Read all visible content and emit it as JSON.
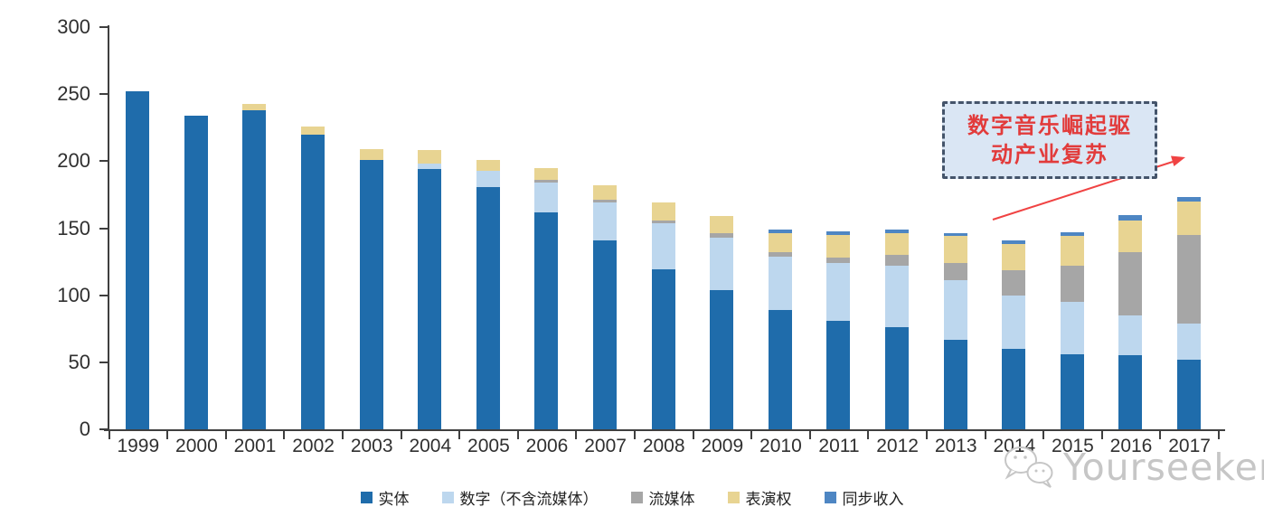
{
  "chart_data": {
    "type": "bar",
    "variant": "stacked",
    "title": "",
    "unit_note": "",
    "categories": [
      "1999",
      "2000",
      "2001",
      "2002",
      "2003",
      "2004",
      "2005",
      "2006",
      "2007",
      "2008",
      "2009",
      "2010",
      "2011",
      "2012",
      "2013",
      "2014",
      "2015",
      "2016",
      "2017"
    ],
    "series": [
      {
        "name": "实体",
        "color": "#1F6CAB",
        "values": [
          252,
          234,
          238,
          220,
          201,
          194,
          181,
          162,
          141,
          119,
          104,
          89,
          81,
          76,
          67,
          60,
          56,
          55,
          52
        ]
      },
      {
        "name": "数字（不含流媒体）",
        "color": "#BDD7EE",
        "values": [
          0,
          0,
          0,
          0,
          0,
          4,
          12,
          22,
          28,
          35,
          39,
          40,
          43,
          46,
          44,
          40,
          39,
          30,
          27
        ]
      },
      {
        "name": "流媒体",
        "color": "#A6A6A6",
        "values": [
          0,
          0,
          0,
          0,
          0,
          0,
          0,
          2,
          2,
          2,
          3,
          3,
          4,
          8,
          13,
          19,
          27,
          47,
          66
        ]
      },
      {
        "name": "表演权",
        "color": "#E8D492",
        "values": [
          0,
          0,
          5,
          6,
          8,
          10,
          8,
          9,
          11,
          13,
          13,
          14,
          17,
          16,
          20,
          19,
          22,
          24,
          25
        ]
      },
      {
        "name": "同步收入",
        "color": "#4E86C3",
        "values": [
          0,
          0,
          0,
          0,
          0,
          0,
          0,
          0,
          0,
          0,
          0,
          3,
          3,
          3,
          2,
          3,
          3,
          4,
          3
        ]
      }
    ],
    "ylim": [
      0,
      300
    ],
    "yticks": [
      0,
      50,
      100,
      150,
      200,
      250,
      300
    ],
    "xlabel": "",
    "ylabel": "",
    "grid": false,
    "legend_position": "bottom"
  },
  "annotation": {
    "full_text": "数字音乐崛起驱动产业复苏",
    "line1": "数字音乐崛起驱",
    "line2": "动产业复苏",
    "text_color": "#E23B3B",
    "box_fill": "#DAE6F4",
    "box_border": "#44546A",
    "arrow_color": "#F04343"
  },
  "watermark": {
    "text": "Yourseeker",
    "icon": "wechat-chat-bubbles-icon",
    "color": "#C6C6C6"
  },
  "axis_colors": {
    "line": "#3F3F3F",
    "label": "#303030"
  }
}
